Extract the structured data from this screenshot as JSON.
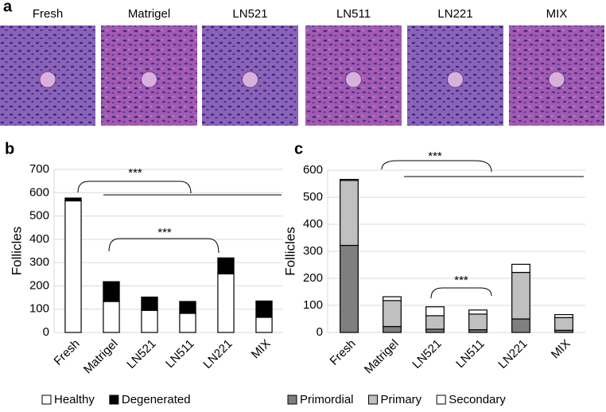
{
  "panel_a": {
    "label": "a",
    "images": [
      "Fresh",
      "Matrigel",
      "LN521",
      "LN511",
      "LN221",
      "MIX"
    ]
  },
  "chart_data": [
    {
      "type": "bar",
      "stacked": true,
      "panel_label": "b",
      "y_label": "Follicles",
      "categories": [
        "Fresh",
        "Matrigel",
        "LN521",
        "LN511",
        "LN221",
        "MIX"
      ],
      "series": [
        {
          "name": "Healthy",
          "color": "#ffffff",
          "values": [
            565,
            133,
            95,
            82,
            252,
            65
          ]
        },
        {
          "name": "Degenerated",
          "color": "#000000",
          "values": [
            12,
            85,
            57,
            51,
            68,
            70
          ]
        }
      ],
      "ylim": [
        0,
        700
      ],
      "yticks": [
        0,
        100,
        200,
        300,
        400,
        500,
        600,
        700
      ],
      "grid": true,
      "annotations": [
        "***",
        "***"
      ]
    },
    {
      "type": "bar",
      "stacked": true,
      "panel_label": "c",
      "y_label": "Follicles",
      "categories": [
        "Fresh",
        "Matrigel",
        "LN521",
        "LN511",
        "LN221",
        "MIX"
      ],
      "series": [
        {
          "name": "Primordial",
          "color": "#7f7f7f",
          "values": [
            322,
            22,
            12,
            10,
            50,
            8
          ]
        },
        {
          "name": "Primary",
          "color": "#c0c0c0",
          "values": [
            240,
            96,
            50,
            58,
            172,
            47
          ]
        },
        {
          "name": "Secondary",
          "color": "#ffffff",
          "values": [
            4,
            14,
            33,
            15,
            30,
            11
          ]
        }
      ],
      "ylim": [
        0,
        600
      ],
      "yticks": [
        0,
        100,
        200,
        300,
        400,
        500,
        600
      ],
      "grid": true,
      "annotations": [
        "***",
        "***"
      ]
    }
  ]
}
